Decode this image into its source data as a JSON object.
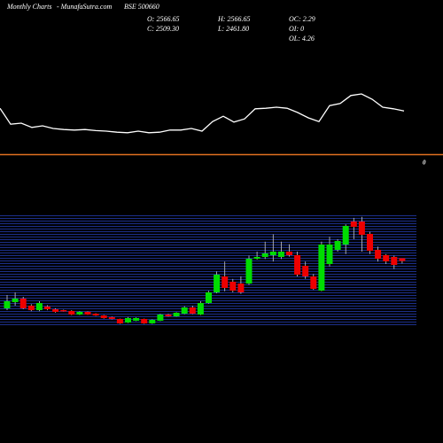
{
  "header": {
    "title": "Monthly Charts",
    "site": "- MunafaSutra.com",
    "symbol": "BSE 500660",
    "open": "O: 2566.65",
    "close": "C: 2509.30",
    "high": "H: 2566.65",
    "low": "L: 2461.80",
    "oc": "OC: 2.29",
    "oi": "OI: 0",
    "ol": "OL: 4.26"
  },
  "chart_data": [
    {
      "type": "line",
      "color": "#ffffff",
      "ylim": [
        0,
        100
      ],
      "values": [
        63,
        33,
        35,
        27,
        30,
        25,
        23,
        22,
        23,
        21,
        20,
        18,
        17,
        20,
        17,
        18,
        22,
        22,
        25,
        20,
        38,
        48,
        37,
        43,
        62,
        63,
        65,
        63,
        55,
        45,
        38,
        68,
        72,
        87,
        90,
        80,
        65,
        62,
        58
      ]
    },
    {
      "type": "candlestick",
      "zero_label": "0",
      "up_color": "#00dd00",
      "down_color": "#ee0000",
      "ylim": [
        1200,
        3450
      ],
      "ohlc": [
        [
          1557,
          1825,
          1521,
          1700
        ],
        [
          1682,
          1879,
          1611,
          1754
        ],
        [
          1754,
          1790,
          1540,
          1557
        ],
        [
          1611,
          1640,
          1500,
          1521
        ],
        [
          1521,
          1700,
          1500,
          1664
        ],
        [
          1593,
          1620,
          1520,
          1539
        ],
        [
          1539,
          1560,
          1470,
          1486
        ],
        [
          1521,
          1530,
          1490,
          1504
        ],
        [
          1504,
          1520,
          1420,
          1432
        ],
        [
          1432,
          1500,
          1420,
          1486
        ],
        [
          1486,
          1495,
          1425,
          1432
        ],
        [
          1450,
          1460,
          1405,
          1414
        ],
        [
          1414,
          1425,
          1350,
          1361
        ],
        [
          1379,
          1390,
          1335,
          1343
        ],
        [
          1343,
          1350,
          1245,
          1254
        ],
        [
          1271,
          1380,
          1260,
          1361
        ],
        [
          1307,
          1375,
          1300,
          1361
        ],
        [
          1343,
          1350,
          1245,
          1254
        ],
        [
          1254,
          1335,
          1245,
          1325
        ],
        [
          1307,
          1445,
          1300,
          1432
        ],
        [
          1432,
          1445,
          1390,
          1396
        ],
        [
          1396,
          1480,
          1390,
          1468
        ],
        [
          1450,
          1600,
          1440,
          1575
        ],
        [
          1575,
          1610,
          1440,
          1450
        ],
        [
          1432,
          1700,
          1420,
          1664
        ],
        [
          1664,
          1910,
          1650,
          1879
        ],
        [
          1879,
          2300,
          1860,
          2236
        ],
        [
          2200,
          2500,
          1900,
          1968
        ],
        [
          2093,
          2150,
          1880,
          1914
        ],
        [
          2057,
          2200,
          1850,
          1879
        ],
        [
          2057,
          2620,
          2030,
          2557
        ],
        [
          2557,
          2700,
          2540,
          2593
        ],
        [
          2593,
          2900,
          2550,
          2664
        ],
        [
          2629,
          3050,
          2500,
          2700
        ],
        [
          2593,
          2900,
          2550,
          2700
        ],
        [
          2700,
          2850,
          2600,
          2629
        ],
        [
          2629,
          2700,
          2200,
          2236
        ],
        [
          2414,
          2500,
          2150,
          2200
        ],
        [
          2200,
          2250,
          1930,
          1950
        ],
        [
          1914,
          2900,
          1900,
          2843
        ],
        [
          2450,
          3000,
          2400,
          2843
        ],
        [
          2736,
          2950,
          2700,
          2914
        ],
        [
          2843,
          3250,
          2650,
          3218
        ],
        [
          3307,
          3380,
          2950,
          3200
        ],
        [
          3307,
          3400,
          2700,
          3039
        ],
        [
          3057,
          3100,
          2650,
          2718
        ],
        [
          2736,
          2800,
          2500,
          2557
        ],
        [
          2629,
          2650,
          2450,
          2504
        ],
        [
          2593,
          2620,
          2350,
          2432
        ],
        [
          2566.65,
          2566.65,
          2461.8,
          2509.3
        ]
      ]
    }
  ]
}
